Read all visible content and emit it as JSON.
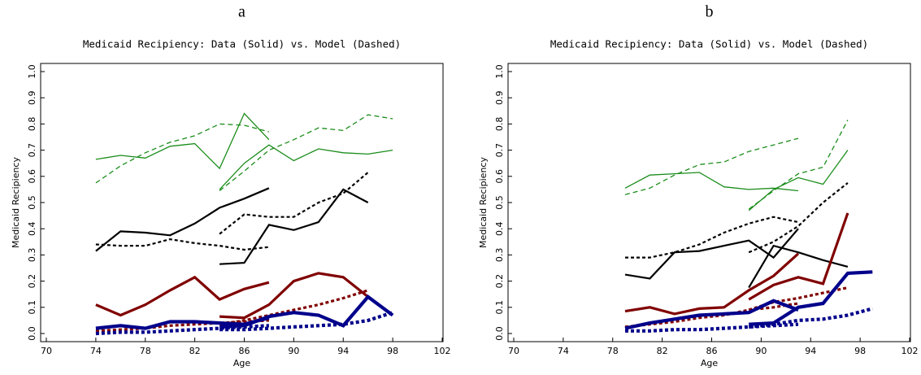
{
  "chart_data": [
    {
      "type": "line",
      "panel_label": "a",
      "title": "Medicaid Recipiency:  Data (Solid) vs. Model (Dashed)",
      "xlabel": "Age",
      "ylabel": "Medicaid Recipiency",
      "xlim": [
        70,
        102
      ],
      "ylim": [
        0,
        1
      ],
      "xticks": [
        70,
        74,
        78,
        82,
        86,
        90,
        94,
        98,
        102
      ],
      "yticks": [
        {
          "value": 0,
          "label": "0.0"
        },
        0.1,
        0.2,
        0.3,
        0.4,
        0.5,
        0.6,
        0.7,
        0.8,
        0.9,
        {
          "value": 1,
          "label": "1.0"
        }
      ],
      "series": [
        {
          "color": "#1a8c1a",
          "width": 1.3,
          "dashed": false,
          "x": [
            74,
            76,
            78,
            80,
            82,
            84,
            86,
            88
          ],
          "values": [
            0.665,
            0.68,
            0.67,
            0.715,
            0.725,
            0.63,
            0.84,
            0.74
          ]
        },
        {
          "color": "#1a8c1a",
          "width": 1.3,
          "dashed": false,
          "x": [
            84,
            86,
            88,
            90,
            92,
            94,
            96,
            98
          ],
          "values": [
            0.55,
            0.65,
            0.72,
            0.66,
            0.705,
            0.69,
            0.685,
            0.7
          ]
        },
        {
          "color": "#1a8c1a",
          "width": 1.3,
          "dashed": true,
          "x": [
            74,
            76,
            78,
            80,
            82,
            84,
            86,
            88
          ],
          "values": [
            0.575,
            0.64,
            0.69,
            0.73,
            0.755,
            0.8,
            0.795,
            0.77
          ]
        },
        {
          "color": "#1a8c1a",
          "width": 1.3,
          "dashed": true,
          "x": [
            84,
            86,
            88,
            90,
            92,
            94,
            96,
            98
          ],
          "values": [
            0.545,
            0.62,
            0.7,
            0.74,
            0.785,
            0.775,
            0.835,
            0.82
          ]
        },
        {
          "color": "#000000",
          "width": 2.2,
          "dashed": false,
          "x": [
            74,
            76,
            78,
            80,
            82,
            84,
            86,
            88
          ],
          "values": [
            0.315,
            0.39,
            0.385,
            0.375,
            0.42,
            0.48,
            0.515,
            0.555
          ]
        },
        {
          "color": "#000000",
          "width": 2.2,
          "dashed": false,
          "x": [
            84,
            86,
            88,
            90,
            92,
            94,
            96
          ],
          "values": [
            0.265,
            0.27,
            0.415,
            0.395,
            0.425,
            0.55,
            0.5
          ]
        },
        {
          "color": "#000000",
          "width": 2.2,
          "dashed": true,
          "x": [
            74,
            76,
            78,
            80,
            82,
            84,
            86,
            88
          ],
          "values": [
            0.34,
            0.335,
            0.335,
            0.36,
            0.345,
            0.335,
            0.32,
            0.33
          ]
        },
        {
          "color": "#000000",
          "width": 2.2,
          "dashed": true,
          "x": [
            84,
            86,
            88,
            90,
            92,
            94,
            96
          ],
          "values": [
            0.38,
            0.455,
            0.445,
            0.445,
            0.5,
            0.535,
            0.615
          ]
        },
        {
          "color": "#800000",
          "width": 3.2,
          "dashed": false,
          "x": [
            74,
            76,
            78,
            80,
            82,
            84,
            86,
            88
          ],
          "values": [
            0.11,
            0.07,
            0.11,
            0.165,
            0.215,
            0.13,
            0.17,
            0.195
          ]
        },
        {
          "color": "#800000",
          "width": 3.2,
          "dashed": false,
          "x": [
            84,
            86,
            88,
            90,
            92,
            94,
            96
          ],
          "values": [
            0.065,
            0.06,
            0.11,
            0.2,
            0.23,
            0.215,
            0.14
          ]
        },
        {
          "color": "#800000",
          "width": 3.2,
          "dashed": true,
          "x": [
            74,
            76,
            78,
            80,
            82,
            84,
            86,
            88
          ],
          "values": [
            0.01,
            0.015,
            0.02,
            0.03,
            0.035,
            0.04,
            0.045,
            0.05
          ]
        },
        {
          "color": "#800000",
          "width": 3.2,
          "dashed": true,
          "x": [
            84,
            86,
            88,
            90,
            92,
            94,
            96
          ],
          "values": [
            0.035,
            0.05,
            0.07,
            0.09,
            0.11,
            0.135,
            0.165
          ]
        },
        {
          "color": "#00008b",
          "width": 4.2,
          "dashed": false,
          "x": [
            74,
            76,
            78,
            80,
            82,
            84,
            86,
            88
          ],
          "values": [
            0.02,
            0.03,
            0.02,
            0.045,
            0.045,
            0.04,
            0.035,
            0.06
          ]
        },
        {
          "color": "#00008b",
          "width": 4.2,
          "dashed": false,
          "x": [
            84,
            86,
            88,
            90,
            92,
            94,
            96,
            98
          ],
          "values": [
            0.025,
            0.03,
            0.065,
            0.08,
            0.07,
            0.03,
            0.14,
            0.07
          ]
        },
        {
          "color": "#00008b",
          "width": 4.2,
          "dashed": true,
          "x": [
            74,
            76,
            78,
            80,
            82,
            84,
            86,
            88
          ],
          "values": [
            0.0,
            0.005,
            0.005,
            0.01,
            0.015,
            0.02,
            0.025,
            0.03
          ]
        },
        {
          "color": "#00008b",
          "width": 4.2,
          "dashed": true,
          "x": [
            84,
            86,
            88,
            90,
            92,
            94,
            96,
            98
          ],
          "values": [
            0.015,
            0.015,
            0.02,
            0.025,
            0.03,
            0.035,
            0.05,
            0.08
          ]
        }
      ]
    },
    {
      "type": "line",
      "panel_label": "b",
      "title": "Medicaid Recipiency:  Data (Solid) vs. Model (Dashed)",
      "xlabel": "Age",
      "ylabel": "Medicaid Recipiency",
      "xlim": [
        70,
        102
      ],
      "ylim": [
        0,
        1
      ],
      "xticks": [
        70,
        74,
        78,
        82,
        86,
        90,
        94,
        98,
        102
      ],
      "yticks": [
        {
          "value": 0,
          "label": "0.0"
        },
        0.1,
        0.2,
        0.3,
        0.4,
        0.5,
        0.6,
        0.7,
        0.8,
        0.9,
        {
          "value": 1,
          "label": "1.0"
        }
      ],
      "series": [
        {
          "color": "#1a8c1a",
          "width": 1.3,
          "dashed": false,
          "x": [
            79,
            81,
            83,
            85,
            87,
            89,
            91,
            93
          ],
          "values": [
            0.555,
            0.605,
            0.61,
            0.615,
            0.56,
            0.55,
            0.555,
            0.545
          ]
        },
        {
          "color": "#1a8c1a",
          "width": 1.3,
          "dashed": false,
          "x": [
            89,
            91,
            93,
            95,
            97
          ],
          "values": [
            0.47,
            0.55,
            0.595,
            0.57,
            0.7
          ]
        },
        {
          "color": "#1a8c1a",
          "width": 1.3,
          "dashed": true,
          "x": [
            79,
            81,
            83,
            85,
            87,
            89,
            91,
            93
          ],
          "values": [
            0.53,
            0.555,
            0.605,
            0.645,
            0.655,
            0.695,
            0.72,
            0.745
          ]
        },
        {
          "color": "#1a8c1a",
          "width": 1.3,
          "dashed": true,
          "x": [
            89,
            91,
            93,
            95,
            97
          ],
          "values": [
            0.475,
            0.545,
            0.61,
            0.635,
            0.815
          ]
        },
        {
          "color": "#000000",
          "width": 2.2,
          "dashed": false,
          "x": [
            79,
            81,
            83,
            85,
            87,
            89,
            91,
            93
          ],
          "values": [
            0.225,
            0.21,
            0.31,
            0.315,
            0.335,
            0.355,
            0.29,
            0.4
          ]
        },
        {
          "color": "#000000",
          "width": 2.2,
          "dashed": false,
          "x": [
            89,
            91,
            93,
            95,
            97
          ],
          "values": [
            0.175,
            0.335,
            0.31,
            0.28,
            0.255
          ]
        },
        {
          "color": "#000000",
          "width": 2.2,
          "dashed": true,
          "x": [
            79,
            81,
            83,
            85,
            87,
            89,
            91,
            93
          ],
          "values": [
            0.29,
            0.29,
            0.31,
            0.34,
            0.385,
            0.42,
            0.445,
            0.425
          ]
        },
        {
          "color": "#000000",
          "width": 2.2,
          "dashed": true,
          "x": [
            89,
            91,
            93,
            95,
            97
          ],
          "values": [
            0.31,
            0.35,
            0.41,
            0.5,
            0.575
          ]
        },
        {
          "color": "#800000",
          "width": 3.2,
          "dashed": false,
          "x": [
            79,
            81,
            83,
            85,
            87,
            89,
            91,
            93
          ],
          "values": [
            0.085,
            0.1,
            0.075,
            0.095,
            0.1,
            0.165,
            0.22,
            0.305
          ]
        },
        {
          "color": "#800000",
          "width": 3.2,
          "dashed": false,
          "x": [
            89,
            91,
            93,
            95,
            97
          ],
          "values": [
            0.13,
            0.185,
            0.215,
            0.19,
            0.46
          ]
        },
        {
          "color": "#800000",
          "width": 3.2,
          "dashed": true,
          "x": [
            79,
            81,
            83,
            85,
            87,
            89,
            91,
            93
          ],
          "values": [
            0.025,
            0.035,
            0.045,
            0.06,
            0.07,
            0.09,
            0.1,
            0.115
          ]
        },
        {
          "color": "#800000",
          "width": 3.2,
          "dashed": true,
          "x": [
            89,
            91,
            93,
            95,
            97
          ],
          "values": [
            0.09,
            0.12,
            0.135,
            0.155,
            0.175
          ]
        },
        {
          "color": "#00008b",
          "width": 4.2,
          "dashed": false,
          "x": [
            79,
            81,
            83,
            85,
            87,
            89,
            91,
            93
          ],
          "values": [
            0.02,
            0.04,
            0.055,
            0.07,
            0.075,
            0.08,
            0.125,
            0.09
          ]
        },
        {
          "color": "#00008b",
          "width": 4.2,
          "dashed": false,
          "x": [
            89,
            91,
            93,
            95,
            97,
            99
          ],
          "values": [
            0.035,
            0.04,
            0.1,
            0.115,
            0.23,
            0.235
          ]
        },
        {
          "color": "#00008b",
          "width": 4.2,
          "dashed": true,
          "x": [
            79,
            81,
            83,
            85,
            87,
            89,
            91,
            93
          ],
          "values": [
            0.01,
            0.01,
            0.015,
            0.015,
            0.02,
            0.025,
            0.03,
            0.035
          ]
        },
        {
          "color": "#00008b",
          "width": 4.2,
          "dashed": true,
          "x": [
            89,
            91,
            93,
            95,
            97,
            99
          ],
          "values": [
            0.025,
            0.035,
            0.05,
            0.055,
            0.07,
            0.095
          ]
        }
      ]
    }
  ]
}
